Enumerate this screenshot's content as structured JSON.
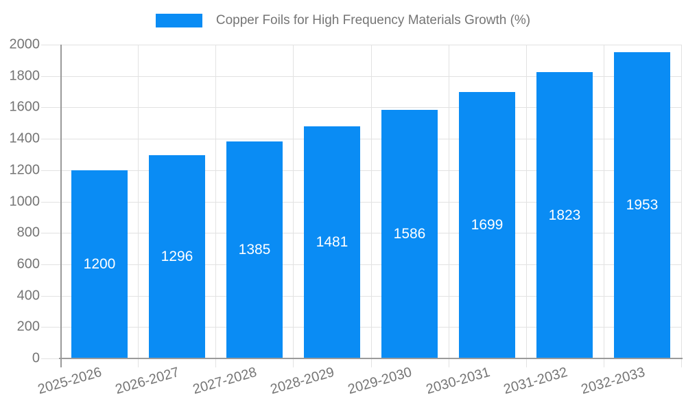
{
  "chart_data": {
    "type": "bar",
    "title": "Copper Foils for High Frequency Materials Growth (%)",
    "categories": [
      "2025-2026",
      "2026-2027",
      "2027-2028",
      "2028-2029",
      "2029-2030",
      "2030-2031",
      "2031-2032",
      "2032-2033"
    ],
    "values": [
      1200,
      1296,
      1385,
      1481,
      1586,
      1699,
      1823,
      1953
    ],
    "yticks": [
      0,
      200,
      400,
      600,
      800,
      1000,
      1200,
      1400,
      1600,
      1800,
      2000
    ],
    "ylim": [
      0,
      2000
    ],
    "xlabel": "",
    "ylabel": "",
    "grid": true,
    "legend_position": "top",
    "bar_color": "#0a8cf4",
    "bar_label_color": "#ffffff",
    "axis_text_color": "#757575",
    "grid_color": "#e2e2e2",
    "axis_line_color": "#9a9a9a",
    "background_color": "#ffffff"
  }
}
